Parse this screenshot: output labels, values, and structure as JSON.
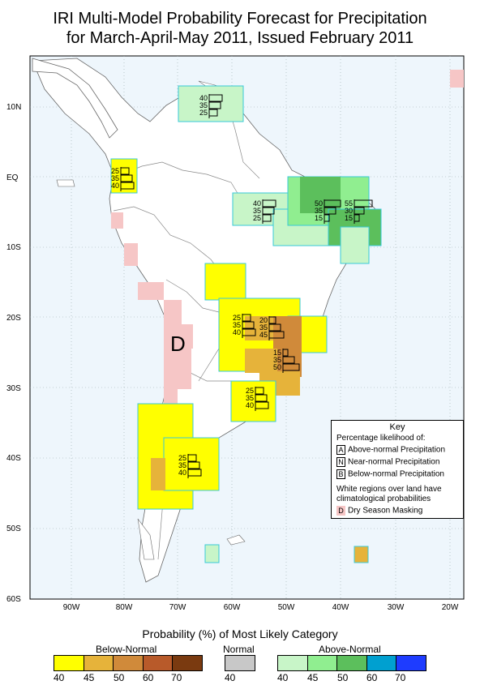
{
  "title": {
    "line1": "IRI Multi-Model Probability Forecast for Precipitation",
    "line2": "for March-April-May 2011, Issued February 2011"
  },
  "axes": {
    "lat_labels": [
      "10N",
      "EQ",
      "10S",
      "20S",
      "30S",
      "40S",
      "50S",
      "60S"
    ],
    "lon_labels": [
      "90W",
      "80W",
      "70W",
      "60W",
      "50W",
      "40W",
      "30W",
      "20W"
    ]
  },
  "dry_season_letter": "D",
  "forecast_boxes": [
    {
      "name": "venezuela",
      "above": "40",
      "normal": "35",
      "below": "25"
    },
    {
      "name": "ecuador",
      "above": "25",
      "normal": "35",
      "below": "40"
    },
    {
      "name": "amazon",
      "above": "40",
      "normal": "35",
      "below": "25"
    },
    {
      "name": "northeast-brazil-1",
      "above": "50",
      "normal": "35",
      "below": "15"
    },
    {
      "name": "northeast-brazil-2",
      "above": "55",
      "normal": "30",
      "below": "15"
    },
    {
      "name": "paraguay",
      "above": "25",
      "normal": "35",
      "below": "40"
    },
    {
      "name": "parana",
      "above": "20",
      "normal": "35",
      "below": "45"
    },
    {
      "name": "south-brazil",
      "above": "15",
      "normal": "35",
      "below": "50"
    },
    {
      "name": "uruguay",
      "above": "25",
      "normal": "35",
      "below": "40"
    },
    {
      "name": "patagonia",
      "above": "25",
      "normal": "35",
      "below": "40"
    }
  ],
  "key": {
    "title": "Key",
    "subtitle": "Percentage likelihood of:",
    "rows": [
      {
        "letter": "A",
        "label": "Above-normal Precipitation"
      },
      {
        "letter": "N",
        "label": "Near-normal Precipitation"
      },
      {
        "letter": "B",
        "label": "Below-normal Precipitation"
      }
    ],
    "note": "White regions over land have climatological probabilities",
    "dry_letter": "D",
    "dry_label": "Dry Season Masking"
  },
  "colorbar": {
    "title": "Probability (%) of Most Likely Category",
    "below_label": "Below-Normal",
    "normal_label": "Normal",
    "above_label": "Above-Normal",
    "below_ticks": [
      "40",
      "45",
      "50",
      "60",
      "70"
    ],
    "normal_ticks": [
      "40"
    ],
    "above_ticks": [
      "40",
      "45",
      "50",
      "60",
      "70"
    ],
    "below_colors": [
      "#ffff00",
      "#e6b33a",
      "#d08a3a",
      "#b85a2a",
      "#7a3a10"
    ],
    "normal_colors": [
      "#c8c8c8"
    ],
    "above_colors": [
      "#c8f5c8",
      "#90ee90",
      "#5cbf5c",
      "#00a0d0",
      "#1e3cff"
    ]
  },
  "colors": {
    "ocean": "#eef6fc",
    "land": "#ffffff",
    "dry": "#f6c6c6"
  }
}
